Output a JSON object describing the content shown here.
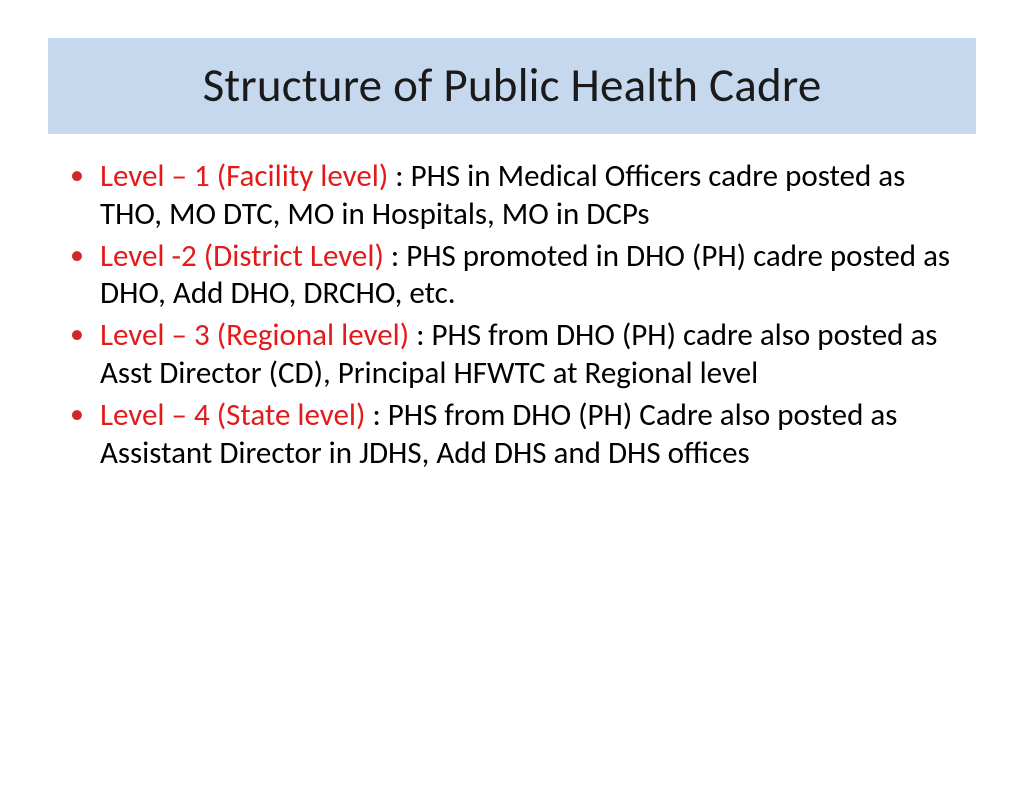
{
  "colors": {
    "title_bg": "#c5d8ed",
    "title_text": "#1a1a1a",
    "bullet_color": "#d22828",
    "label_color": "#e41a1a",
    "body_text": "#000000",
    "background": "#ffffff"
  },
  "typography": {
    "title_fontsize": 47,
    "body_fontsize": 31,
    "font_family": "Calibri"
  },
  "title": "Structure of Public Health Cadre",
  "bullets": [
    {
      "label": "Level – 1 (Facility level) ",
      "desc": ": PHS in Medical Officers cadre posted  as THO, MO DTC, MO in Hospitals, MO in DCPs"
    },
    {
      "label": "Level -2 (District Level) ",
      "desc": ": PHS promoted in DHO (PH) cadre posted as DHO, Add DHO, DRCHO, etc."
    },
    {
      "label": "Level – 3 (Regional level) ",
      "desc": ": PHS from DHO (PH) cadre also posted as Asst Director (CD), Principal HFWTC at Regional level"
    },
    {
      "label": "Level – 4 (State level) ",
      "desc": ": PHS from DHO (PH) Cadre also posted as Assistant Director in JDHS, Add DHS and DHS offices"
    }
  ]
}
